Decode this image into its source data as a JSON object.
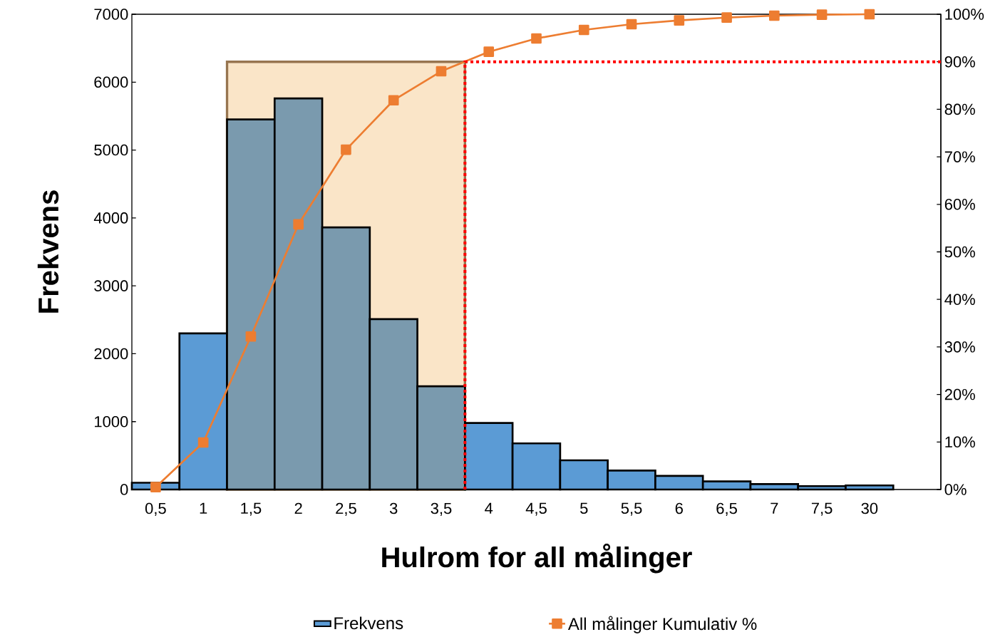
{
  "chart_data": {
    "type": "bar",
    "xlabel": "Hulrom for all målinger",
    "ylabel": "Frekvens",
    "categories": [
      "0,5",
      "1",
      "1,5",
      "2",
      "2,5",
      "3",
      "3,5",
      "4",
      "4,5",
      "5",
      "5,5",
      "6",
      "6,5",
      "7",
      "7,5",
      "30",
      null
    ],
    "series": [
      {
        "name": "Frekvens",
        "color": "#5b9bd5",
        "values": [
          100,
          2300,
          5450,
          5760,
          3860,
          2510,
          1520,
          980,
          680,
          430,
          280,
          200,
          120,
          80,
          50,
          60,
          null
        ],
        "colors": [
          "#5b9bd5",
          "#5b9bd5",
          "#7a9aae",
          "#7a9aae",
          "#7a9aae",
          "#7a9aae",
          "#7a9aae",
          "#5b9bd5",
          "#5b9bd5",
          "#5b9bd5",
          "#5b9bd5",
          "#5b9bd5",
          "#5b9bd5",
          "#5b9bd5",
          "#5b9bd5",
          "#5b9bd5",
          "#5b9bd5"
        ]
      },
      {
        "name": "All målinger Kumulativ %",
        "type": "line",
        "axis": "y2",
        "color": "#ed7d31",
        "marker": "square",
        "line_style": "solid",
        "values": [
          0.5,
          9.9,
          32.2,
          55.8,
          71.5,
          81.9,
          88.0,
          92.1,
          94.9,
          96.7,
          97.9,
          98.7,
          99.3,
          99.7,
          99.9,
          100,
          null
        ]
      }
    ],
    "ylim": [
      0,
      7000
    ],
    "yticks": [
      0,
      1000,
      2000,
      3000,
      4000,
      5000,
      6000,
      7000
    ],
    "y2lim": [
      0,
      100
    ],
    "y2ticks": [
      {
        "value": 0,
        "label": "0%"
      },
      {
        "value": 10,
        "label": "10%"
      },
      {
        "value": 20,
        "label": "20%"
      },
      {
        "value": 30,
        "label": "30%"
      },
      {
        "value": 40,
        "label": "40%"
      },
      {
        "value": 50,
        "label": "50%"
      },
      {
        "value": 60,
        "label": "60%"
      },
      {
        "value": 70,
        "label": "70%"
      },
      {
        "value": 80,
        "label": "80%"
      },
      {
        "value": 90,
        "label": "90%"
      },
      {
        "value": 100,
        "label": "100%"
      }
    ],
    "bands": [
      {
        "axis": "x",
        "from": "1,5",
        "to": "3,5",
        "color": "#fae5c8"
      }
    ],
    "ref_lines": [
      {
        "axis": "y2",
        "value": 90,
        "color": "#ff0000",
        "line_style": "dashed"
      }
    ],
    "legend": "bottom",
    "grid": false
  }
}
